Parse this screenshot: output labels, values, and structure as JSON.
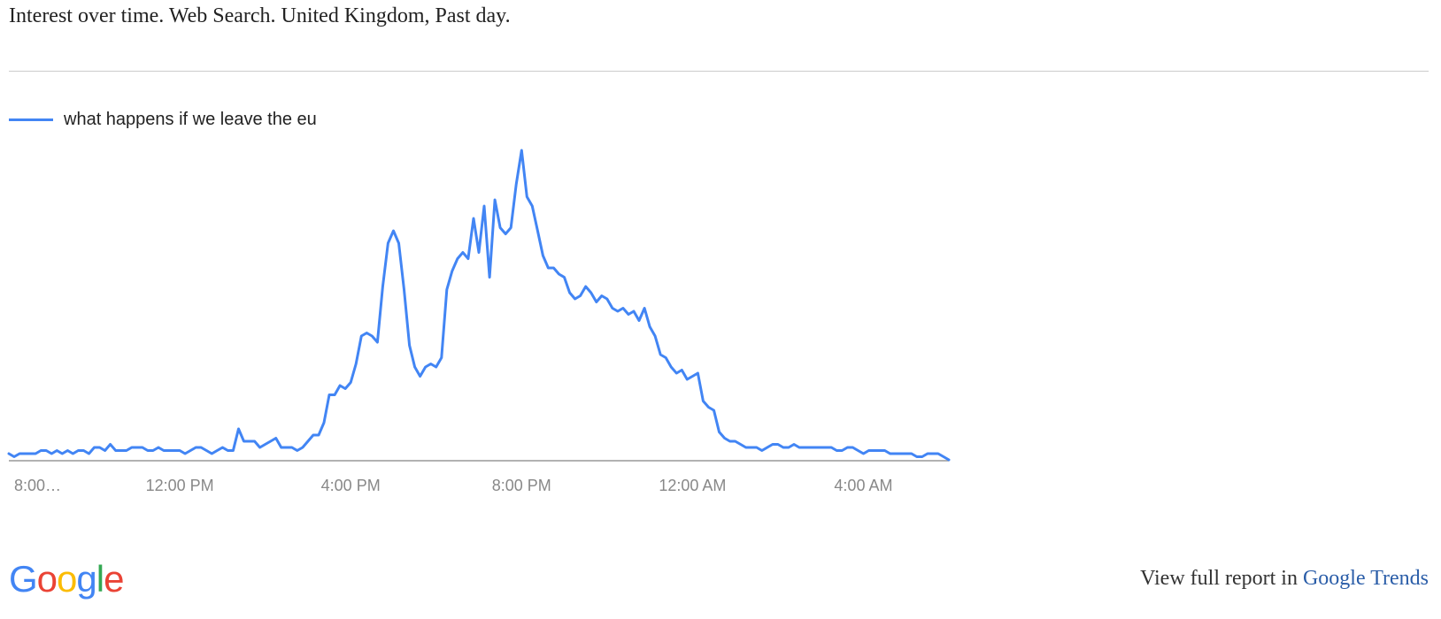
{
  "header": {
    "title": "Interest over time. Web Search. United Kingdom, Past day."
  },
  "colors": {
    "series": "#4285f4",
    "axis": "#999999",
    "tick_text": "#888888",
    "link": "#2a5da8",
    "google_blue": "#4285f4",
    "google_red": "#ea4335",
    "google_yellow": "#fbbc05",
    "google_green": "#34a853"
  },
  "footer": {
    "logo_letters": [
      "G",
      "o",
      "o",
      "g",
      "l",
      "e"
    ],
    "report_prefix": "View full report in",
    "report_link": "Google Trends"
  },
  "chart_data": {
    "type": "line",
    "title": "Interest over time. Web Search. United Kingdom, Past day.",
    "xlabel": "",
    "ylabel": "",
    "ylim": [
      0,
      100
    ],
    "grid": false,
    "legend_position": "top-left",
    "x_ticks": [
      {
        "label": "8:00…",
        "index": 0
      },
      {
        "label": "12:00 PM",
        "index": 32
      },
      {
        "label": "4:00 PM",
        "index": 64
      },
      {
        "label": "8:00 PM",
        "index": 96
      },
      {
        "label": "12:00 AM",
        "index": 128
      },
      {
        "label": "4:00 AM",
        "index": 160
      }
    ],
    "series": [
      {
        "name": "what happens if we leave the eu",
        "values": [
          2,
          1,
          2,
          2,
          2,
          2,
          3,
          3,
          2,
          3,
          2,
          3,
          2,
          3,
          3,
          2,
          4,
          4,
          3,
          5,
          3,
          3,
          3,
          4,
          4,
          4,
          3,
          3,
          4,
          3,
          3,
          3,
          3,
          2,
          3,
          4,
          4,
          3,
          2,
          3,
          4,
          3,
          3,
          10,
          6,
          6,
          6,
          4,
          5,
          6,
          7,
          4,
          4,
          4,
          3,
          4,
          6,
          8,
          8,
          12,
          21,
          21,
          24,
          23,
          25,
          31,
          40,
          41,
          40,
          38,
          56,
          70,
          74,
          70,
          55,
          37,
          30,
          27,
          30,
          31,
          30,
          33,
          55,
          61,
          65,
          67,
          65,
          78,
          67,
          82,
          59,
          84,
          75,
          73,
          75,
          89,
          100,
          85,
          82,
          74,
          66,
          62,
          62,
          60,
          59,
          54,
          52,
          53,
          56,
          54,
          51,
          53,
          52,
          49,
          48,
          49,
          47,
          48,
          45,
          49,
          43,
          40,
          34,
          33,
          30,
          28,
          29,
          26,
          27,
          28,
          19,
          17,
          16,
          9,
          7,
          6,
          6,
          5,
          4,
          4,
          4,
          3,
          4,
          5,
          5,
          4,
          4,
          5,
          4,
          4,
          4,
          4,
          4,
          4,
          4,
          3,
          3,
          4,
          4,
          3,
          2,
          3,
          3,
          3,
          3,
          2,
          2,
          2,
          2,
          2,
          1,
          1,
          2,
          2,
          2,
          1,
          0
        ]
      }
    ]
  }
}
